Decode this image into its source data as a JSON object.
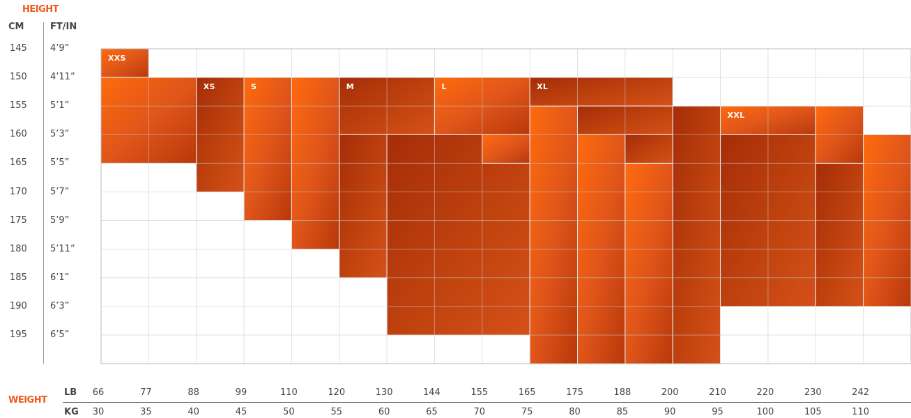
{
  "header": {
    "height_title": "HEIGHT",
    "cm_label": "CM",
    "ftin_label": "FT/IN"
  },
  "weight_axis": {
    "title": "WEIGHT",
    "lb_label": "LB",
    "kg_label": "KG"
  },
  "chart_data": {
    "type": "heatmap",
    "title": "",
    "y_axis": {
      "title": "HEIGHT",
      "cm": [
        "145",
        "150",
        "155",
        "160",
        "165",
        "170",
        "175",
        "180",
        "185",
        "190",
        "195"
      ],
      "ftin": [
        "4’9”",
        "4’11”",
        "5’1”",
        "5’3”",
        "5’5”",
        "5’7”",
        "5’9”",
        "5’11”",
        "6’1”",
        "6’3”",
        "6’5”"
      ]
    },
    "x_axis": {
      "title": "WEIGHT",
      "lb": [
        "66",
        "77",
        "88",
        "99",
        "110",
        "120",
        "130",
        "144",
        "155",
        "165",
        "175",
        "188",
        "200",
        "210",
        "220",
        "230",
        "242"
      ],
      "kg": [
        "30",
        "35",
        "40",
        "45",
        "50",
        "55",
        "60",
        "65",
        "70",
        "75",
        "80",
        "85",
        "90",
        "95",
        "100",
        "105",
        "110"
      ]
    },
    "grid": true,
    "colors": {
      "bright": "#ff6a0e",
      "deep": "#a8300a",
      "mid": "#d24d16",
      "grid": "#d5d5d5"
    },
    "sizes": [
      {
        "name": "XXS",
        "min_kg": 30,
        "max_kg": 35,
        "min_cm": 145,
        "max_cm": 150
      },
      {
        "name": "XXS",
        "min_kg": 30,
        "max_kg": 40,
        "min_cm": 150,
        "max_cm": 165
      },
      {
        "name": "XS",
        "min_kg": 40,
        "max_kg": 45,
        "min_cm": 150,
        "max_cm": 170
      },
      {
        "name": "S",
        "min_kg": 45,
        "max_kg": 50,
        "min_cm": 150,
        "max_cm": 175
      },
      {
        "name": "S",
        "min_kg": 50,
        "max_kg": 55,
        "min_cm": 150,
        "max_cm": 180
      },
      {
        "name": "M",
        "min_kg": 55,
        "max_kg": 65,
        "min_cm": 150,
        "max_cm": 160
      },
      {
        "name": "M",
        "min_kg": 55,
        "max_kg": 60,
        "min_cm": 160,
        "max_cm": 185
      },
      {
        "name": "M",
        "min_kg": 60,
        "max_kg": 75,
        "min_cm": 160,
        "max_cm": 195
      },
      {
        "name": "L",
        "min_kg": 65,
        "max_kg": 75,
        "min_cm": 150,
        "max_cm": 160
      },
      {
        "name": "L",
        "min_kg": 70,
        "max_kg": 75,
        "min_cm": 160,
        "max_cm": 165
      },
      {
        "name": "L",
        "min_kg": 75,
        "max_kg": 80,
        "min_cm": 155,
        "max_cm": 200
      },
      {
        "name": "L",
        "min_kg": 80,
        "max_kg": 85,
        "min_cm": 160,
        "max_cm": 200
      },
      {
        "name": "L",
        "min_kg": 85,
        "max_kg": 90,
        "min_cm": 165,
        "max_cm": 200
      },
      {
        "name": "XL",
        "min_kg": 75,
        "max_kg": 90,
        "min_cm": 150,
        "max_cm": 155
      },
      {
        "name": "XL",
        "min_kg": 80,
        "max_kg": 90,
        "min_cm": 155,
        "max_cm": 160
      },
      {
        "name": "XL",
        "min_kg": 85,
        "max_kg": 90,
        "min_cm": 160,
        "max_cm": 165
      },
      {
        "name": "XL",
        "min_kg": 90,
        "max_kg": 95,
        "min_cm": 155,
        "max_cm": 200
      },
      {
        "name": "XL",
        "min_kg": 95,
        "max_kg": 100,
        "min_cm": 155,
        "max_cm": 160
      },
      {
        "name": "XL",
        "min_kg": 95,
        "max_kg": 105,
        "min_cm": 160,
        "max_cm": 190
      },
      {
        "name": "XL",
        "min_kg": 105,
        "max_kg": 110,
        "min_cm": 165,
        "max_cm": 190
      },
      {
        "name": "XXL",
        "min_kg": 95,
        "max_kg": 105,
        "min_cm": 155,
        "max_cm": 160
      },
      {
        "name": "XXL",
        "min_kg": 105,
        "max_kg": 110,
        "min_cm": 155,
        "max_cm": 165
      },
      {
        "name": "XXL",
        "min_kg": 110,
        "max_kg": 115,
        "min_cm": 160,
        "max_cm": 190
      }
    ],
    "labels": [
      {
        "text": "XXS",
        "kg": 30,
        "cm": 145
      },
      {
        "text": "XS",
        "kg": 40,
        "cm": 150
      },
      {
        "text": "S",
        "kg": 45,
        "cm": 150
      },
      {
        "text": "M",
        "kg": 55,
        "cm": 150
      },
      {
        "text": "L",
        "kg": 65,
        "cm": 150
      },
      {
        "text": "XL",
        "kg": 75,
        "cm": 150
      },
      {
        "text": "XXL",
        "kg": 95,
        "cm": 155
      }
    ]
  }
}
